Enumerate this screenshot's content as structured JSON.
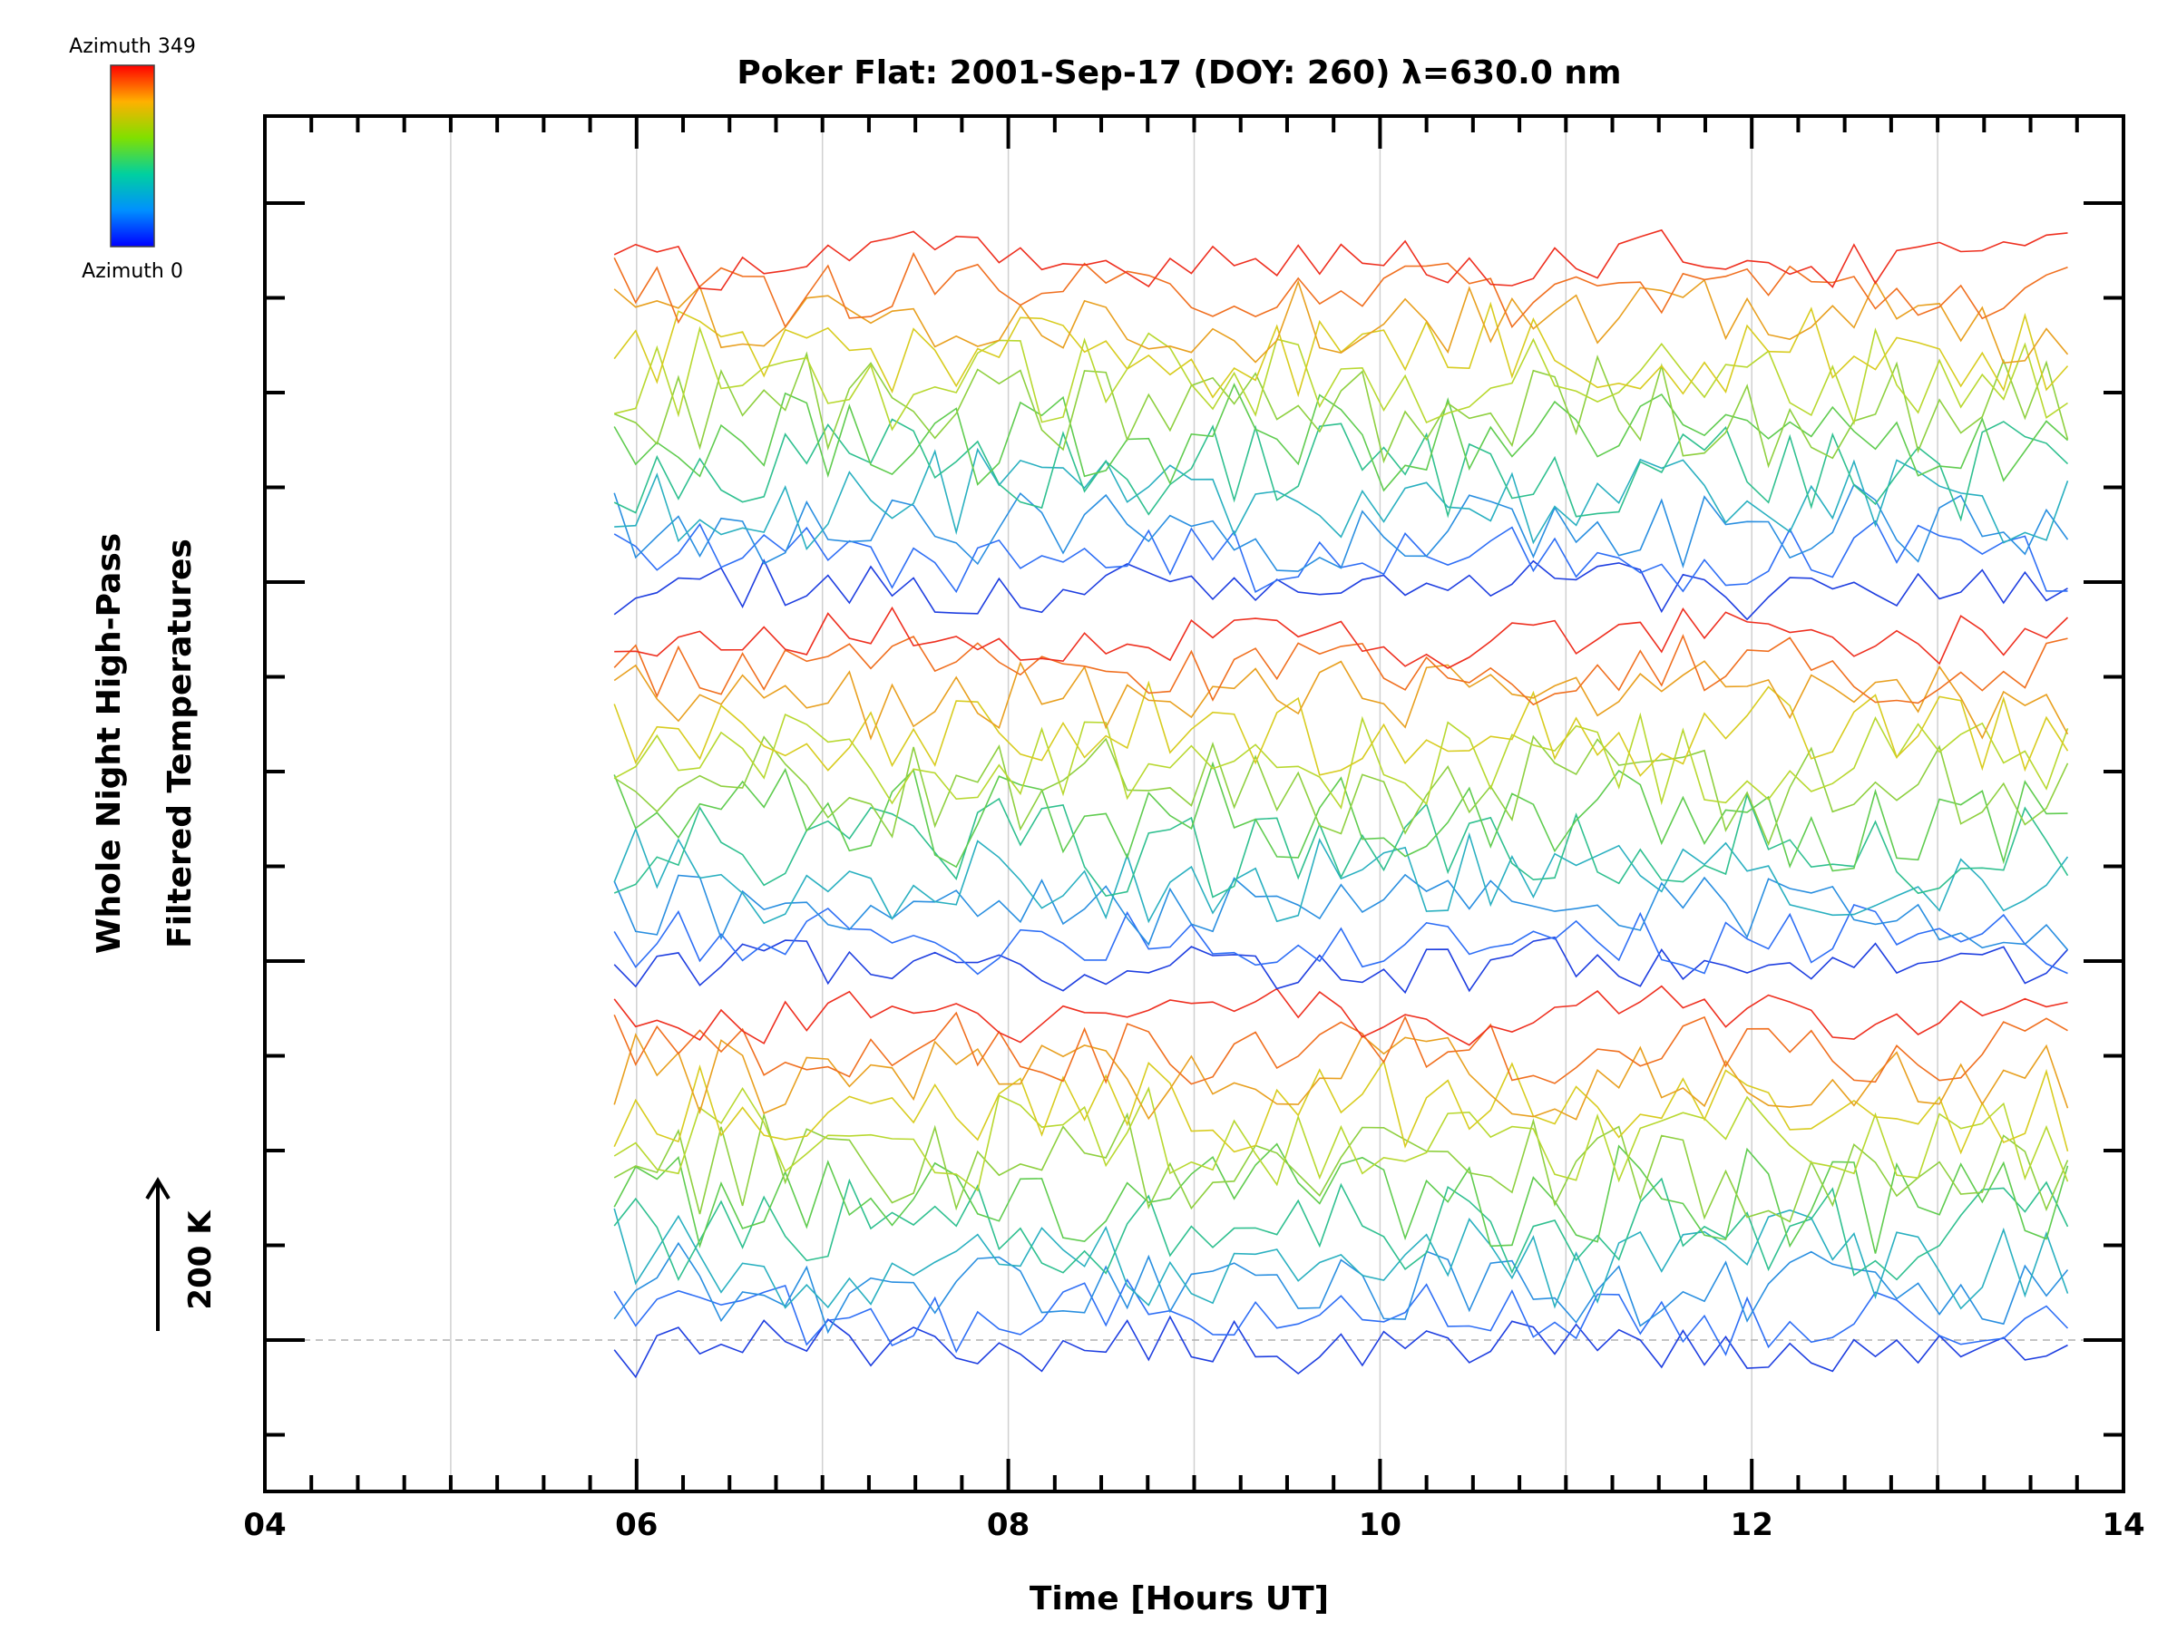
{
  "chart_data": {
    "type": "line",
    "title": "Poker Flat: 2001-Sep-17 (DOY: 260) λ=630.0 nm",
    "xlabel": "Time [Hours UT]",
    "ylabel_line1": "Whole Night High-Pass",
    "ylabel_line2": "Filtered Temperatures",
    "scale_label": "200 K",
    "xlim": [
      4,
      14
    ],
    "x_ticks": [
      "04",
      "06",
      "08",
      "10",
      "12",
      "14"
    ],
    "x_tick_values": [
      4,
      6,
      8,
      10,
      12,
      14
    ],
    "x_minor_step": 0.25,
    "x_gridlines": [
      5,
      6,
      7,
      8,
      9,
      10,
      11,
      12,
      13
    ],
    "y_major_levels": [
      0,
      1,
      2,
      3
    ],
    "y_minor_levels": [
      -0.25,
      0.25,
      0.5,
      0.75,
      1.25,
      1.5,
      1.75,
      2.25,
      2.5,
      2.75
    ],
    "ylim": [
      -0.4,
      3.22
    ],
    "baseline_level": 0,
    "colorbar": {
      "top_label": "Azimuth 349",
      "bottom_label": "Azimuth 0",
      "colors": [
        "#ff0000",
        "#ff8000",
        "#e0e000",
        "#80e000",
        "#00d000",
        "#00c0c0",
        "#0060ff",
        "#0000ff"
      ]
    },
    "series_note": "stacked traces of high-pass filtered temperature per azimuth; offsets in units of major tick spacing",
    "trace_time_range": [
      5.88,
      13.77
    ],
    "sample_interval_hours": 0.115,
    "bands": [
      {
        "offset": 0,
        "azimuth_colors": [
          "#1f3fe0",
          "#2f6ff5",
          "#2a8fe0",
          "#2ab0c0",
          "#30c090",
          "#60cc50",
          "#8fd040",
          "#b8d830",
          "#d8cc20",
          "#e8a020",
          "#f07020",
          "#ee3020"
        ]
      },
      {
        "offset": 1,
        "azimuth_colors": [
          "#1f3fe0",
          "#2f6ff5",
          "#2a8fe0",
          "#2ab0c0",
          "#30c090",
          "#60cc50",
          "#8fd040",
          "#b8d830",
          "#d8cc20",
          "#e8a020",
          "#f07020",
          "#ee3020"
        ]
      },
      {
        "offset": 2,
        "azimuth_colors": [
          "#1f3fe0",
          "#2f6ff5",
          "#2a8fe0",
          "#2ab0c0",
          "#30c090",
          "#60cc50",
          "#8fd040",
          "#b8d830",
          "#d8cc20",
          "#e8a020",
          "#f07020",
          "#ee3020"
        ]
      }
    ]
  }
}
